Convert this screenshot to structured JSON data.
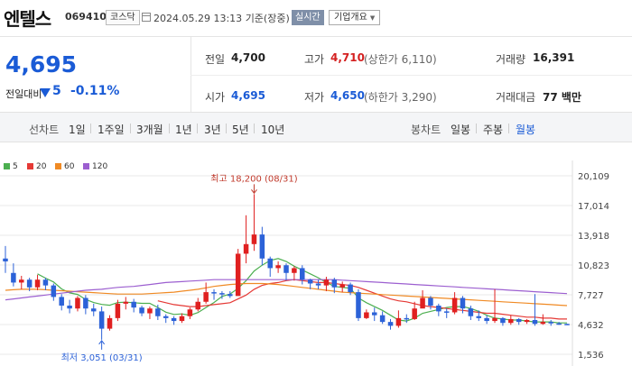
{
  "header": {
    "stock_name": "엔텔스",
    "stock_code": "069410",
    "market": "코스닥",
    "datetime": "2024.05.29 13:13",
    "basis": "기준(장중)",
    "realtime_label": "실시간",
    "company_info_label": "기업개요"
  },
  "quote": {
    "price": "4,695",
    "change_label": "전일대비",
    "change_value": "5",
    "change_pct": "-0.11%",
    "prev_close_label": "전일",
    "prev_close": "4,700",
    "high_label": "고가",
    "high": "4,710",
    "upper_limit": "(상한가 6,110)",
    "volume_label": "거래량",
    "volume": "16,391",
    "open_label": "시가",
    "open": "4,695",
    "low_label": "저가",
    "low": "4,650",
    "lower_limit": "(하한가 3,290)",
    "amount_label": "거래대금",
    "amount": "77 백만"
  },
  "tabs": {
    "line_chart": "선차트",
    "periods": [
      "1일",
      "1주일",
      "3개월",
      "1년",
      "3년",
      "5년",
      "10년"
    ],
    "candle_chart": "봉차트",
    "candle_periods": [
      "일봉",
      "주봉",
      "월봉"
    ],
    "candle_selected": "월봉"
  },
  "legend": [
    {
      "label": "5",
      "color": "#4caf50"
    },
    {
      "label": "20",
      "color": "#e53935"
    },
    {
      "label": "60",
      "color": "#f08a24"
    },
    {
      "label": "120",
      "color": "#9c5fd0"
    }
  ],
  "colors": {
    "up": "#e02020",
    "down": "#2c62d8"
  },
  "chart_data": {
    "type": "candlestick",
    "y_ticks": [
      "20,109",
      "17,014",
      "13,918",
      "10,823",
      "7,727",
      "4,632",
      "1,536"
    ],
    "y_tick_values": [
      20109,
      17014,
      13918,
      10823,
      7727,
      4632,
      1536
    ],
    "ylim": [
      1536,
      20109
    ],
    "max_annotation": "최고 18,200 (08/31)",
    "min_annotation": "최저 3,051 (03/31)",
    "candles": [
      [
        11500,
        11200,
        12800,
        10000
      ],
      [
        10000,
        9000,
        11000,
        8600
      ],
      [
        9000,
        9300,
        9700,
        8300
      ],
      [
        9300,
        8500,
        9500,
        8100
      ],
      [
        8500,
        9300,
        9800,
        8200
      ],
      [
        9300,
        8700,
        9500,
        8200
      ],
      [
        8700,
        7500,
        8900,
        7100
      ],
      [
        7500,
        6600,
        7800,
        6100
      ],
      [
        6600,
        6300,
        7200,
        5800
      ],
      [
        6300,
        7400,
        7600,
        6000
      ],
      [
        7400,
        6300,
        7700,
        5700
      ],
      [
        6300,
        6000,
        6800,
        5500
      ],
      [
        6000,
        4200,
        6500,
        3051
      ],
      [
        4200,
        5300,
        5600,
        4000
      ],
      [
        5300,
        6800,
        7200,
        5000
      ],
      [
        6800,
        7000,
        7500,
        6200
      ],
      [
        7000,
        6400,
        7300,
        5900
      ],
      [
        6400,
        5800,
        6600,
        5500
      ],
      [
        5800,
        6300,
        6500,
        5200
      ],
      [
        6300,
        5500,
        6700,
        5100
      ],
      [
        5500,
        5300,
        5700,
        4800
      ],
      [
        5300,
        5000,
        5500,
        4600
      ],
      [
        5000,
        5500,
        5800,
        4800
      ],
      [
        5500,
        6200,
        6400,
        5200
      ],
      [
        6200,
        7000,
        7400,
        6000
      ],
      [
        7000,
        8000,
        9000,
        6800
      ],
      [
        8000,
        7900,
        8300,
        7200
      ],
      [
        7900,
        7800,
        8100,
        7300
      ],
      [
        7800,
        7600,
        8100,
        7400
      ],
      [
        7600,
        12000,
        12500,
        7700
      ],
      [
        12000,
        13000,
        16000,
        11000
      ],
      [
        13000,
        14000,
        18200,
        12300
      ],
      [
        14000,
        11500,
        14800,
        10800
      ],
      [
        11500,
        10500,
        11700,
        9600
      ],
      [
        10500,
        10800,
        11200,
        10000
      ],
      [
        10800,
        10000,
        11000,
        9200
      ],
      [
        10000,
        10500,
        10700,
        9200
      ],
      [
        10500,
        9300,
        10800,
        8800
      ],
      [
        9300,
        8900,
        9400,
        8300
      ],
      [
        8900,
        8700,
        9300,
        8300
      ],
      [
        8700,
        9300,
        9600,
        8100
      ],
      [
        9300,
        8500,
        9500,
        7900
      ],
      [
        8500,
        8800,
        9100,
        8000
      ],
      [
        8800,
        8000,
        9000,
        7700
      ],
      [
        8000,
        5300,
        8300,
        5000
      ],
      [
        5300,
        5900,
        6200,
        5200
      ],
      [
        5900,
        5600,
        6400,
        5000
      ],
      [
        5600,
        4900,
        6000,
        4700
      ],
      [
        4900,
        4500,
        5200,
        4100
      ],
      [
        4500,
        5300,
        6100,
        4300
      ],
      [
        5300,
        5200,
        5700,
        4800
      ],
      [
        5200,
        6300,
        7000,
        5100
      ],
      [
        6300,
        7400,
        8200,
        6500
      ],
      [
        7400,
        6600,
        7600,
        6200
      ],
      [
        6600,
        6000,
        6800,
        5500
      ],
      [
        6000,
        5900,
        6300,
        5300
      ],
      [
        5900,
        7400,
        8000,
        5700
      ],
      [
        7400,
        6300,
        7600,
        5800
      ],
      [
        6300,
        5500,
        6600,
        5100
      ],
      [
        5500,
        5300,
        6100,
        5000
      ],
      [
        5300,
        5000,
        5600,
        4700
      ],
      [
        5000,
        5300,
        8300,
        4800
      ],
      [
        5300,
        4800,
        5400,
        4500
      ],
      [
        4800,
        5200,
        5600,
        4600
      ],
      [
        5200,
        4900,
        5300,
        4600
      ],
      [
        4900,
        5100,
        5200,
        4700
      ],
      [
        5100,
        4700,
        7800,
        4500
      ],
      [
        4700,
        4900,
        5700,
        4600
      ],
      [
        4900,
        4750,
        5100,
        4500
      ],
      [
        4750,
        4700,
        4900,
        4600
      ],
      [
        4700,
        4695,
        4710,
        4650
      ]
    ],
    "moving_averages": {
      "5": [
        null,
        null,
        null,
        null,
        9900,
        9460,
        9060,
        8340,
        7920,
        7760,
        7240,
        6920,
        6720,
        6640,
        6920,
        6960,
        6900,
        6840,
        6840,
        6400,
        5920,
        5680,
        5740,
        5600,
        5880,
        6400,
        6920,
        7560,
        7800,
        8400,
        9200,
        10200,
        10800,
        11300,
        11500,
        11200,
        10700,
        10300,
        9900,
        9500,
        9000,
        8600,
        8500,
        8400,
        7400,
        6900,
        6500,
        6100,
        5600,
        5100,
        5000,
        5300,
        5800,
        6000,
        6200,
        6400,
        6500,
        6500,
        6300,
        6000,
        5600,
        5300,
        5200,
        5100,
        5100,
        5000,
        4900,
        4900,
        4900,
        4800,
        4800
      ],
      "20": [
        null,
        null,
        null,
        null,
        null,
        null,
        null,
        null,
        null,
        null,
        null,
        null,
        null,
        null,
        null,
        null,
        null,
        null,
        null,
        7100,
        6900,
        6700,
        6600,
        6500,
        6500,
        6600,
        6700,
        6800,
        6900,
        7300,
        7700,
        8300,
        8700,
        8900,
        9000,
        9200,
        9300,
        9200,
        9100,
        9000,
        9000,
        8900,
        8800,
        8700,
        8500,
        8200,
        7900,
        7600,
        7300,
        7100,
        7000,
        6800,
        6600,
        6500,
        6400,
        6300,
        6200,
        6100,
        6000,
        5900,
        5800,
        5800,
        5700,
        5600,
        5500,
        5400,
        5400,
        5300,
        5300,
        5200,
        5200
      ],
      "60": [
        8200,
        8250,
        8300,
        8300,
        8300,
        8250,
        8200,
        8150,
        8100,
        8050,
        8000,
        7950,
        7900,
        7850,
        7800,
        7800,
        7800,
        7800,
        7850,
        7900,
        7950,
        8000,
        8100,
        8200,
        8300,
        8450,
        8600,
        8700,
        8800,
        8850,
        8900,
        8900,
        8900,
        8850,
        8800,
        8700,
        8600,
        8500,
        8400,
        8300,
        8200,
        8100,
        8000,
        7950,
        7900,
        7850,
        7800,
        7750,
        7700,
        7650,
        7600,
        7550,
        7500,
        7450,
        7400,
        7350,
        7300,
        7250,
        7200,
        7150,
        7100,
        7050,
        7000,
        6950,
        6900,
        6850,
        6800,
        6750,
        6700,
        6650,
        6600
      ],
      "120": [
        7200,
        7300,
        7400,
        7500,
        7600,
        7700,
        7800,
        7900,
        8000,
        8100,
        8200,
        8250,
        8300,
        8400,
        8500,
        8550,
        8600,
        8700,
        8800,
        8900,
        9000,
        9050,
        9100,
        9150,
        9200,
        9250,
        9300,
        9300,
        9300,
        9300,
        9300,
        9300,
        9300,
        9300,
        9300,
        9300,
        9300,
        9300,
        9300,
        9300,
        9300,
        9300,
        9250,
        9200,
        9150,
        9100,
        9050,
        9000,
        8950,
        8900,
        8850,
        8800,
        8750,
        8700,
        8650,
        8600,
        8550,
        8500,
        8450,
        8400,
        8350,
        8300,
        8250,
        8200,
        8150,
        8100,
        8050,
        8000,
        7950,
        7900,
        7850
      ]
    }
  }
}
